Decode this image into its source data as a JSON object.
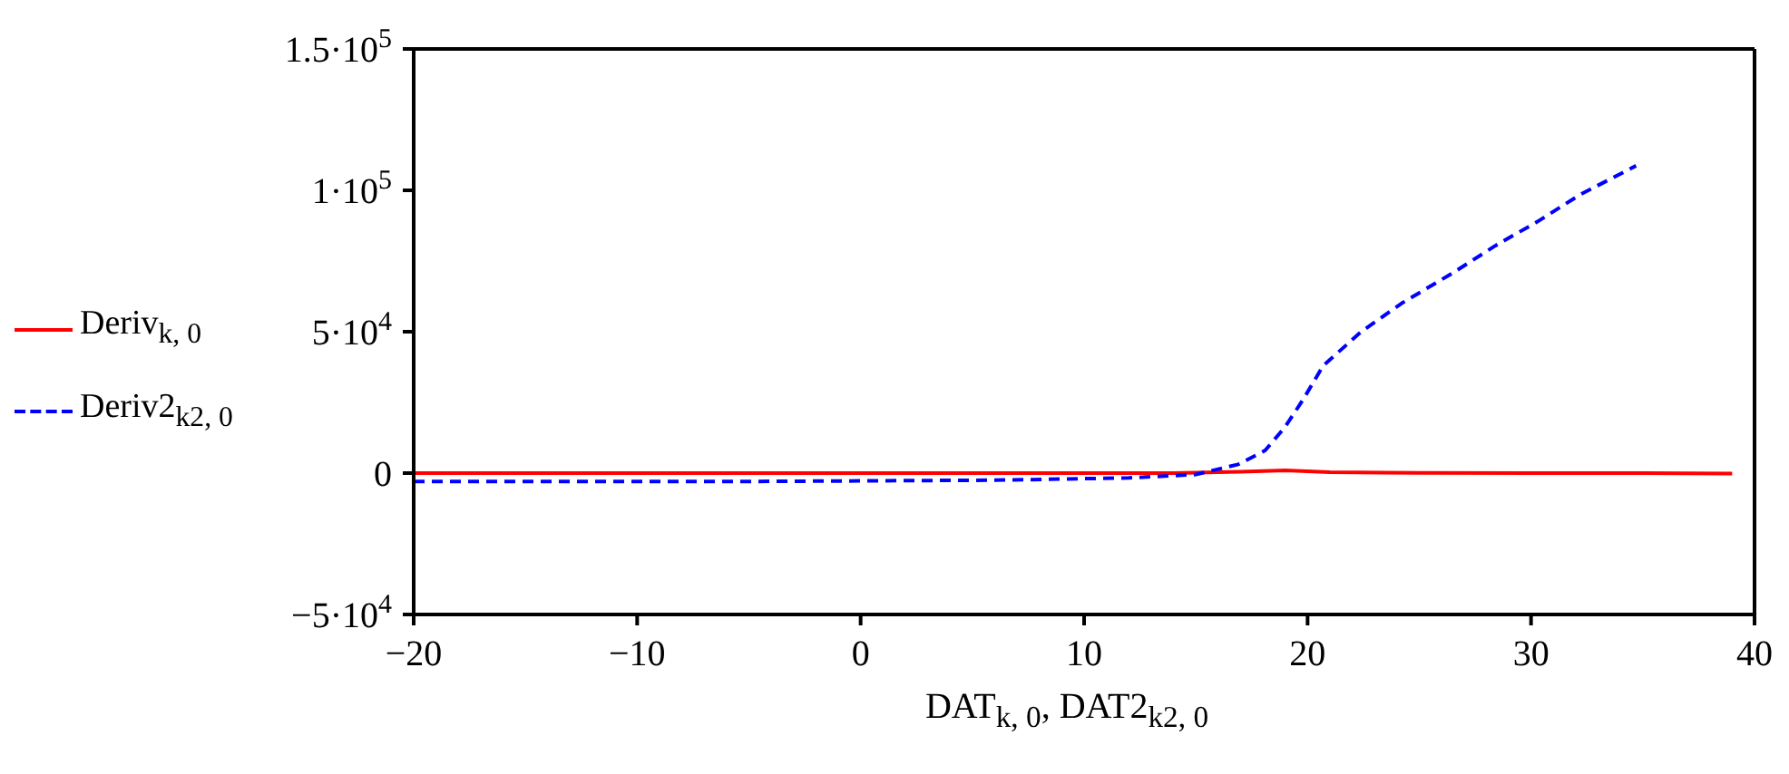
{
  "chart_data": {
    "type": "line",
    "xlabel": "DAT$_{k, 0}$, DAT2$_{k2, 0}$",
    "legend": "left",
    "xlim": [
      -20,
      40
    ],
    "xticks": [
      {
        "value": -20,
        "label": "−20"
      },
      {
        "value": -10,
        "label": "−10"
      },
      0,
      10,
      20,
      30,
      40
    ],
    "ylim": [
      -50000,
      150000
    ],
    "yticks": [
      {
        "value": -50000,
        "label": "−5·10$^{4}$"
      },
      0,
      {
        "value": 50000,
        "label": "5·10$^{4}$"
      },
      {
        "value": 100000,
        "label": "1·10$^{5}$"
      },
      {
        "value": 150000,
        "label": "1.5·10$^{5}$"
      }
    ],
    "series": [
      {
        "name": "Deriv$_{k, 0}$",
        "color": "#ff0000",
        "line_style": "solid",
        "x": [
          -20,
          -10,
          0,
          10,
          14,
          17,
          19,
          21,
          25,
          30,
          35,
          39
        ],
        "values": [
          0,
          0,
          0,
          0,
          0,
          500,
          1000,
          300,
          100,
          0,
          0,
          -200
        ]
      },
      {
        "name": "Deriv2$_{k2, 0}$",
        "color": "#0000ff",
        "line_style": "dashed",
        "x": [
          -20,
          -6,
          6,
          12,
          15,
          16.9,
          18.1,
          19,
          19.8,
          20.7,
          22.4,
          24.2,
          26.5,
          28.4,
          30.3,
          32.2,
          34.7
        ],
        "values": [
          -3000,
          -3000,
          -2500,
          -1700,
          -500,
          3100,
          8000,
          16400,
          26000,
          38000,
          50000,
          60000,
          70800,
          80400,
          89000,
          98500,
          108700
        ]
      }
    ]
  }
}
